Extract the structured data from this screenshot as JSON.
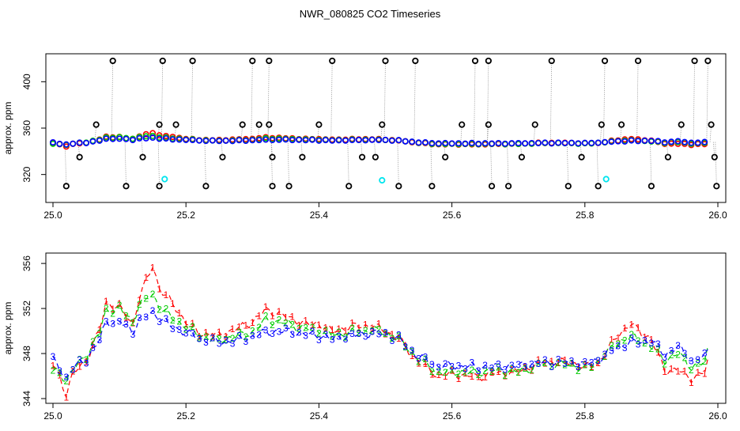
{
  "figure": {
    "title": "NWR_080825  CO2 Timeseries"
  },
  "colors": {
    "s1": "#ff0000",
    "s2": "#00cd00",
    "s3": "#0000ff",
    "outlier": "#000000",
    "flagged": "#00e5ee",
    "connector": "#888888",
    "axis": "#000000"
  },
  "chart_data": [
    {
      "type": "scatter",
      "ylabel": "approx. ppm",
      "xlim": [
        25.0,
        26.0
      ],
      "ylim": [
        300,
        420
      ],
      "x_ticks": [
        "25.0",
        "25.2",
        "25.4",
        "25.6",
        "25.8",
        "26.0"
      ],
      "y_ticks": [
        "320",
        "360",
        "400"
      ],
      "series": [
        {
          "values_from": "panel2"
        }
      ],
      "outliers": [
        [
          25.02,
          310
        ],
        [
          25.04,
          335
        ],
        [
          25.065,
          363
        ],
        [
          25.09,
          418
        ],
        [
          25.11,
          310
        ],
        [
          25.135,
          335
        ],
        [
          25.16,
          363
        ],
        [
          25.16,
          310
        ],
        [
          25.165,
          418
        ],
        [
          25.185,
          363
        ],
        [
          25.21,
          418
        ],
        [
          25.23,
          310
        ],
        [
          25.255,
          335
        ],
        [
          25.285,
          363
        ],
        [
          25.3,
          418
        ],
        [
          25.31,
          363
        ],
        [
          25.325,
          418
        ],
        [
          25.325,
          363
        ],
        [
          25.33,
          335
        ],
        [
          25.33,
          310
        ],
        [
          25.355,
          310
        ],
        [
          25.375,
          335
        ],
        [
          25.4,
          363
        ],
        [
          25.42,
          418
        ],
        [
          25.445,
          310
        ],
        [
          25.465,
          335
        ],
        [
          25.485,
          335
        ],
        [
          25.495,
          363
        ],
        [
          25.5,
          418
        ],
        [
          25.52,
          310
        ],
        [
          25.545,
          418
        ],
        [
          25.57,
          310
        ],
        [
          25.59,
          335
        ],
        [
          25.615,
          363
        ],
        [
          25.635,
          418
        ],
        [
          25.655,
          418
        ],
        [
          25.655,
          363
        ],
        [
          25.66,
          310
        ],
        [
          25.685,
          310
        ],
        [
          25.705,
          335
        ],
        [
          25.725,
          363
        ],
        [
          25.75,
          418
        ],
        [
          25.775,
          310
        ],
        [
          25.795,
          335
        ],
        [
          25.82,
          310
        ],
        [
          25.825,
          363
        ],
        [
          25.83,
          418
        ],
        [
          25.855,
          363
        ],
        [
          25.88,
          418
        ],
        [
          25.9,
          310
        ],
        [
          25.925,
          335
        ],
        [
          25.945,
          363
        ],
        [
          25.965,
          418
        ],
        [
          25.985,
          418
        ],
        [
          25.99,
          363
        ],
        [
          25.995,
          335
        ],
        [
          25.998,
          310
        ]
      ],
      "flagged": [
        [
          25.168,
          316
        ],
        [
          25.495,
          315
        ],
        [
          25.832,
          316
        ]
      ]
    },
    {
      "type": "line",
      "ylabel": "approx. ppm",
      "xlim": [
        25.0,
        26.0
      ],
      "ylim": [
        344,
        356.5
      ],
      "x_ticks": [
        "25.0",
        "25.2",
        "25.4",
        "25.6",
        "25.8",
        "26.0"
      ],
      "y_ticks": [
        "344",
        "348",
        "352",
        "356"
      ],
      "marker_labels": [
        "1",
        "2",
        "3"
      ],
      "anchors_x": [
        25.0,
        25.01,
        25.02,
        25.03,
        25.05,
        25.07,
        25.08,
        25.1,
        25.12,
        25.13,
        25.15,
        25.16,
        25.18,
        25.2,
        25.22,
        25.25,
        25.28,
        25.3,
        25.32,
        25.35,
        25.38,
        25.4,
        25.42,
        25.45,
        25.48,
        25.5,
        25.52,
        25.55,
        25.58,
        25.6,
        25.64,
        25.66,
        25.7,
        25.74,
        25.78,
        25.8,
        25.82,
        25.85,
        25.87,
        25.9,
        25.92,
        25.94,
        25.96,
        25.98,
        25.985
      ],
      "anchors_y": [
        346.8,
        346.5,
        345.6,
        346.5,
        347.6,
        349.5,
        351.2,
        351.3,
        350.4,
        351.6,
        352.6,
        351.8,
        350.8,
        350.2,
        349.5,
        349.2,
        349.5,
        349.8,
        350.4,
        350.3,
        350.0,
        349.9,
        349.5,
        349.8,
        350.0,
        349.8,
        349.3,
        347.6,
        346.6,
        346.6,
        346.5,
        346.6,
        346.6,
        347.1,
        347.0,
        346.8,
        347.3,
        348.9,
        349.3,
        348.8,
        347.2,
        347.8,
        346.8,
        347.2,
        348.0
      ],
      "series": [
        {
          "name": "1",
          "values_from": "anchors",
          "offsets": [
            0.2,
            -0.6,
            -1.2,
            -0.3,
            -0.2,
            0.6,
            1.3,
            0.8,
            0.2,
            1.4,
            3.2,
            2.0,
            1.6,
            0.6,
            0.3,
            0.4,
            0.8,
            1.0,
            1.5,
            1.0,
            0.6,
            0.7,
            0.5,
            0.6,
            0.5,
            0.2,
            0.0,
            -0.4,
            -0.6,
            -0.4,
            -0.6,
            -0.4,
            -0.2,
            0.2,
            0.2,
            0.0,
            -0.2,
            0.8,
            1.3,
            0.4,
            -0.6,
            -1.3,
            -1.0,
            -0.9,
            -0.6
          ]
        },
        {
          "name": "2",
          "values_from": "anchors",
          "offsets": [
            -0.4,
            -0.2,
            0.0,
            0.1,
            0.2,
            0.4,
            0.6,
            0.7,
            0.4,
            0.8,
            0.6,
            0.4,
            0.3,
            0.2,
            0.1,
            0.0,
            0.1,
            0.1,
            0.6,
            0.4,
            0.2,
            0.2,
            0.1,
            0.1,
            0.1,
            0.0,
            0.0,
            -0.1,
            -0.3,
            -0.2,
            -0.2,
            -0.1,
            -0.2,
            0.0,
            0.0,
            -0.2,
            0.0,
            0.1,
            0.2,
            -0.2,
            0.2,
            0.2,
            0.0,
            0.0,
            0.4
          ]
        },
        {
          "name": "3",
          "values_from": "anchors",
          "offsets": [
            0.6,
            0.2,
            0.2,
            0.2,
            -0.1,
            -0.3,
            -0.4,
            -0.5,
            -0.4,
            -0.6,
            -1.0,
            -0.6,
            -0.5,
            -0.3,
            -0.2,
            -0.2,
            -0.3,
            -0.3,
            -0.5,
            -0.3,
            -0.3,
            -0.3,
            -0.2,
            -0.2,
            -0.2,
            -0.1,
            0.0,
            0.1,
            0.3,
            0.3,
            0.3,
            0.2,
            0.3,
            0.1,
            0.2,
            0.2,
            0.2,
            -0.3,
            -0.3,
            0.3,
            0.7,
            0.8,
            0.6,
            0.5,
            0.2
          ]
        }
      ]
    }
  ]
}
